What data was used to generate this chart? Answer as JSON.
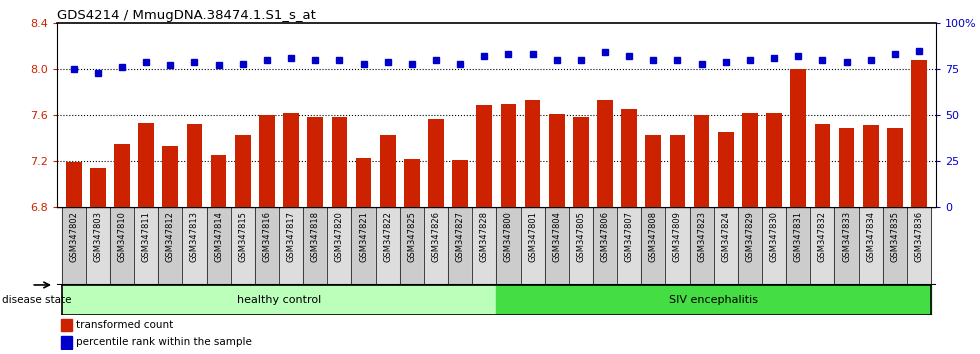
{
  "title": "GDS4214 / MmugDNA.38474.1.S1_s_at",
  "categories": [
    "GSM347802",
    "GSM347803",
    "GSM347810",
    "GSM347811",
    "GSM347812",
    "GSM347813",
    "GSM347814",
    "GSM347815",
    "GSM347816",
    "GSM347817",
    "GSM347818",
    "GSM347820",
    "GSM347821",
    "GSM347822",
    "GSM347825",
    "GSM347826",
    "GSM347827",
    "GSM347828",
    "GSM347800",
    "GSM347801",
    "GSM347804",
    "GSM347805",
    "GSM347806",
    "GSM347807",
    "GSM347808",
    "GSM347809",
    "GSM347823",
    "GSM347824",
    "GSM347829",
    "GSM347830",
    "GSM347831",
    "GSM347832",
    "GSM347833",
    "GSM347834",
    "GSM347835",
    "GSM347836"
  ],
  "bar_values": [
    7.19,
    7.14,
    7.35,
    7.53,
    7.33,
    7.52,
    7.25,
    7.43,
    7.6,
    7.62,
    7.58,
    7.58,
    7.23,
    7.43,
    7.22,
    7.57,
    7.21,
    7.69,
    7.7,
    7.73,
    7.61,
    7.58,
    7.73,
    7.65,
    7.43,
    7.43,
    7.6,
    7.45,
    7.62,
    7.62,
    8.0,
    7.52,
    7.49,
    7.51,
    7.49,
    8.08
  ],
  "percentile_values": [
    75,
    73,
    76,
    79,
    77,
    79,
    77,
    78,
    80,
    81,
    80,
    80,
    78,
    79,
    78,
    80,
    78,
    82,
    83,
    83,
    80,
    80,
    84,
    82,
    80,
    80,
    78,
    79,
    80,
    81,
    82,
    80,
    79,
    80,
    83,
    85
  ],
  "ylim_left": [
    6.8,
    8.4
  ],
  "ylim_right": [
    0,
    100
  ],
  "yticks_left": [
    6.8,
    7.2,
    7.6,
    8.0,
    8.4
  ],
  "yticks_right": [
    0,
    25,
    50,
    75,
    100
  ],
  "ytick_labels_right": [
    "0",
    "25",
    "50",
    "75",
    "100%"
  ],
  "bar_color": "#cc2200",
  "dot_color": "#0000cc",
  "healthy_color": "#bbffbb",
  "healthy_label": "healthy control",
  "siv_color": "#44dd44",
  "siv_label": "SIV encephalitis",
  "healthy_count": 18,
  "siv_count": 18,
  "legend_bar_label": "transformed count",
  "legend_dot_label": "percentile rank within the sample",
  "disease_state_label": "disease state",
  "background_color": "#ffffff",
  "bar_baseline": 6.8,
  "tick_gray": "#cccccc",
  "tick_white": "#eeeeee"
}
